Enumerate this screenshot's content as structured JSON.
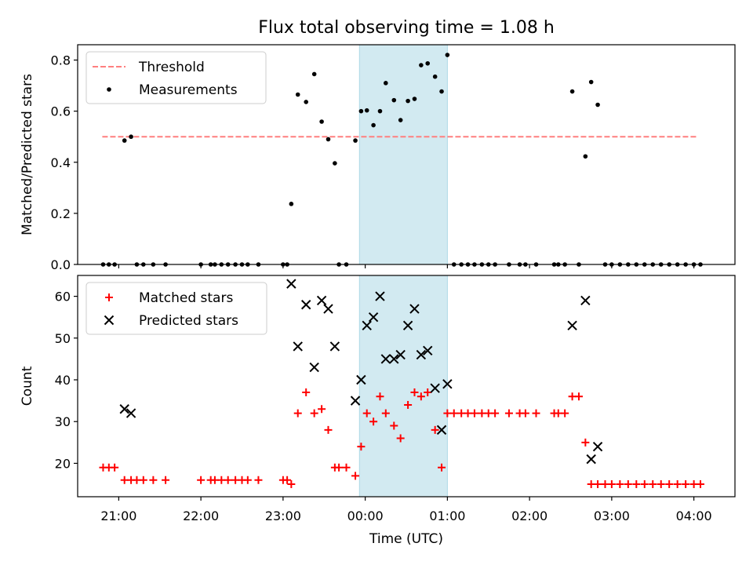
{
  "figure": {
    "title": "Flux total observing time = 1.08 h",
    "xlabel": "Time (UTC)"
  },
  "chart_data": [
    {
      "type": "scatter",
      "ylabel": "Matched/Predicted stars",
      "ylim": [
        0,
        0.86
      ],
      "yticks": [
        0.0,
        0.2,
        0.4,
        0.6,
        0.8
      ],
      "ytick_labels": [
        "0.0",
        "0.2",
        "0.4",
        "0.6",
        "0.8"
      ],
      "xlim_hours": [
        20.5,
        28.5
      ],
      "xticks_hours": [
        21,
        22,
        23,
        24,
        25,
        26,
        27,
        28
      ],
      "xtick_labels": [
        "21:00",
        "22:00",
        "23:00",
        "00:00",
        "01:00",
        "02:00",
        "03:00",
        "04:00"
      ],
      "grid": false,
      "legend": {
        "placement": "upper-left",
        "entries": [
          "Threshold",
          "Measurements"
        ]
      },
      "shaded_span_hours": [
        23.93,
        25.0
      ],
      "shade_color": "#add8e6",
      "threshold": {
        "name": "Threshold",
        "value": 0.5,
        "x_start": 20.8,
        "x_end": 28.05,
        "color": "#ff7f7f",
        "style": "dashed"
      },
      "series": [
        {
          "name": "Measurements",
          "color": "#000000",
          "points": [
            [
              20.81,
              0
            ],
            [
              20.88,
              0
            ],
            [
              20.95,
              0
            ],
            [
              21.07,
              0.485
            ],
            [
              21.15,
              0.5
            ],
            [
              21.22,
              0
            ],
            [
              21.3,
              0
            ],
            [
              21.42,
              0
            ],
            [
              21.57,
              0
            ],
            [
              22.0,
              0
            ],
            [
              22.12,
              0
            ],
            [
              22.17,
              0
            ],
            [
              22.25,
              0
            ],
            [
              22.33,
              0
            ],
            [
              22.42,
              0
            ],
            [
              22.5,
              0
            ],
            [
              22.57,
              0
            ],
            [
              22.7,
              0
            ],
            [
              23.0,
              0
            ],
            [
              23.05,
              0
            ],
            [
              23.1,
              0.237
            ],
            [
              23.18,
              0.665
            ],
            [
              23.28,
              0.636
            ],
            [
              23.38,
              0.745
            ],
            [
              23.47,
              0.559
            ],
            [
              23.55,
              0.49
            ],
            [
              23.63,
              0.396
            ],
            [
              23.68,
              0
            ],
            [
              23.77,
              0
            ],
            [
              23.88,
              0.485
            ],
            [
              23.95,
              0.6
            ],
            [
              24.02,
              0.603
            ],
            [
              24.1,
              0.545
            ],
            [
              24.18,
              0.6
            ],
            [
              24.25,
              0.71
            ],
            [
              24.35,
              0.643
            ],
            [
              24.43,
              0.565
            ],
            [
              24.52,
              0.64
            ],
            [
              24.6,
              0.648
            ],
            [
              24.68,
              0.78
            ],
            [
              24.76,
              0.787
            ],
            [
              24.85,
              0.735
            ],
            [
              24.93,
              0.677
            ],
            [
              25.0,
              0.82
            ],
            [
              25.08,
              0
            ],
            [
              25.17,
              0
            ],
            [
              25.25,
              0
            ],
            [
              25.33,
              0
            ],
            [
              25.42,
              0
            ],
            [
              25.5,
              0
            ],
            [
              25.58,
              0
            ],
            [
              25.75,
              0
            ],
            [
              25.88,
              0
            ],
            [
              25.95,
              0
            ],
            [
              26.08,
              0
            ],
            [
              26.3,
              0
            ],
            [
              26.35,
              0
            ],
            [
              26.43,
              0
            ],
            [
              26.52,
              0.677
            ],
            [
              26.6,
              0
            ],
            [
              26.68,
              0.423
            ],
            [
              26.75,
              0.714
            ],
            [
              26.83,
              0.625
            ],
            [
              26.92,
              0
            ],
            [
              27.0,
              0
            ],
            [
              27.1,
              0
            ],
            [
              27.2,
              0
            ],
            [
              27.3,
              0
            ],
            [
              27.4,
              0
            ],
            [
              27.5,
              0
            ],
            [
              27.6,
              0
            ],
            [
              27.7,
              0
            ],
            [
              27.8,
              0
            ],
            [
              27.9,
              0
            ],
            [
              28.0,
              0
            ],
            [
              28.08,
              0
            ]
          ]
        }
      ]
    },
    {
      "type": "scatter",
      "ylabel": "Count",
      "ylim": [
        12,
        65
      ],
      "yticks": [
        20,
        30,
        40,
        50,
        60
      ],
      "ytick_labels": [
        "20",
        "30",
        "40",
        "50",
        "60"
      ],
      "xlim_hours": [
        20.5,
        28.5
      ],
      "xticks_hours": [
        21,
        22,
        23,
        24,
        25,
        26,
        27,
        28
      ],
      "xtick_labels": [
        "21:00",
        "22:00",
        "23:00",
        "00:00",
        "01:00",
        "02:00",
        "03:00",
        "04:00"
      ],
      "grid": false,
      "legend": {
        "placement": "upper-left",
        "entries": [
          "Matched stars",
          "Predicted stars"
        ]
      },
      "shaded_span_hours": [
        23.93,
        25.0
      ],
      "shade_color": "#add8e6",
      "series": [
        {
          "name": "Matched stars",
          "marker": "plus",
          "color": "#ff0000",
          "points": [
            [
              20.81,
              19
            ],
            [
              20.88,
              19
            ],
            [
              20.95,
              19
            ],
            [
              21.07,
              16
            ],
            [
              21.15,
              16
            ],
            [
              21.22,
              16
            ],
            [
              21.3,
              16
            ],
            [
              21.42,
              16
            ],
            [
              21.57,
              16
            ],
            [
              22.0,
              16
            ],
            [
              22.12,
              16
            ],
            [
              22.17,
              16
            ],
            [
              22.25,
              16
            ],
            [
              22.33,
              16
            ],
            [
              22.42,
              16
            ],
            [
              22.5,
              16
            ],
            [
              22.57,
              16
            ],
            [
              22.7,
              16
            ],
            [
              23.0,
              16
            ],
            [
              23.05,
              16
            ],
            [
              23.1,
              15
            ],
            [
              23.18,
              32
            ],
            [
              23.28,
              37
            ],
            [
              23.38,
              32
            ],
            [
              23.47,
              33
            ],
            [
              23.55,
              28
            ],
            [
              23.63,
              19
            ],
            [
              23.68,
              19
            ],
            [
              23.77,
              19
            ],
            [
              23.88,
              17
            ],
            [
              23.95,
              24
            ],
            [
              24.02,
              32
            ],
            [
              24.1,
              30
            ],
            [
              24.18,
              36
            ],
            [
              24.25,
              32
            ],
            [
              24.35,
              29
            ],
            [
              24.43,
              26
            ],
            [
              24.52,
              34
            ],
            [
              24.6,
              37
            ],
            [
              24.68,
              36
            ],
            [
              24.76,
              37
            ],
            [
              24.85,
              28
            ],
            [
              24.93,
              19
            ],
            [
              25.0,
              32
            ],
            [
              25.08,
              32
            ],
            [
              25.17,
              32
            ],
            [
              25.25,
              32
            ],
            [
              25.33,
              32
            ],
            [
              25.42,
              32
            ],
            [
              25.5,
              32
            ],
            [
              25.58,
              32
            ],
            [
              25.75,
              32
            ],
            [
              25.88,
              32
            ],
            [
              25.95,
              32
            ],
            [
              26.08,
              32
            ],
            [
              26.3,
              32
            ],
            [
              26.35,
              32
            ],
            [
              26.43,
              32
            ],
            [
              26.52,
              36
            ],
            [
              26.6,
              36
            ],
            [
              26.68,
              25
            ],
            [
              26.75,
              15
            ],
            [
              26.83,
              15
            ],
            [
              26.92,
              15
            ],
            [
              27.0,
              15
            ],
            [
              27.1,
              15
            ],
            [
              27.2,
              15
            ],
            [
              27.3,
              15
            ],
            [
              27.4,
              15
            ],
            [
              27.5,
              15
            ],
            [
              27.6,
              15
            ],
            [
              27.7,
              15
            ],
            [
              27.8,
              15
            ],
            [
              27.9,
              15
            ],
            [
              28.0,
              15
            ],
            [
              28.08,
              15
            ]
          ]
        },
        {
          "name": "Predicted stars",
          "marker": "x",
          "color": "#000000",
          "points": [
            [
              21.07,
              33
            ],
            [
              21.15,
              32
            ],
            [
              23.1,
              63
            ],
            [
              23.18,
              48
            ],
            [
              23.28,
              58
            ],
            [
              23.38,
              43
            ],
            [
              23.47,
              59
            ],
            [
              23.55,
              57
            ],
            [
              23.63,
              48
            ],
            [
              23.88,
              35
            ],
            [
              23.95,
              40
            ],
            [
              24.02,
              53
            ],
            [
              24.1,
              55
            ],
            [
              24.18,
              60
            ],
            [
              24.25,
              45
            ],
            [
              24.35,
              45
            ],
            [
              24.43,
              46
            ],
            [
              24.52,
              53
            ],
            [
              24.6,
              57
            ],
            [
              24.68,
              46
            ],
            [
              24.76,
              47
            ],
            [
              24.85,
              38
            ],
            [
              24.93,
              28
            ],
            [
              25.0,
              39
            ],
            [
              26.52,
              53
            ],
            [
              26.68,
              59
            ],
            [
              26.75,
              21
            ],
            [
              26.83,
              24
            ]
          ]
        }
      ]
    }
  ]
}
